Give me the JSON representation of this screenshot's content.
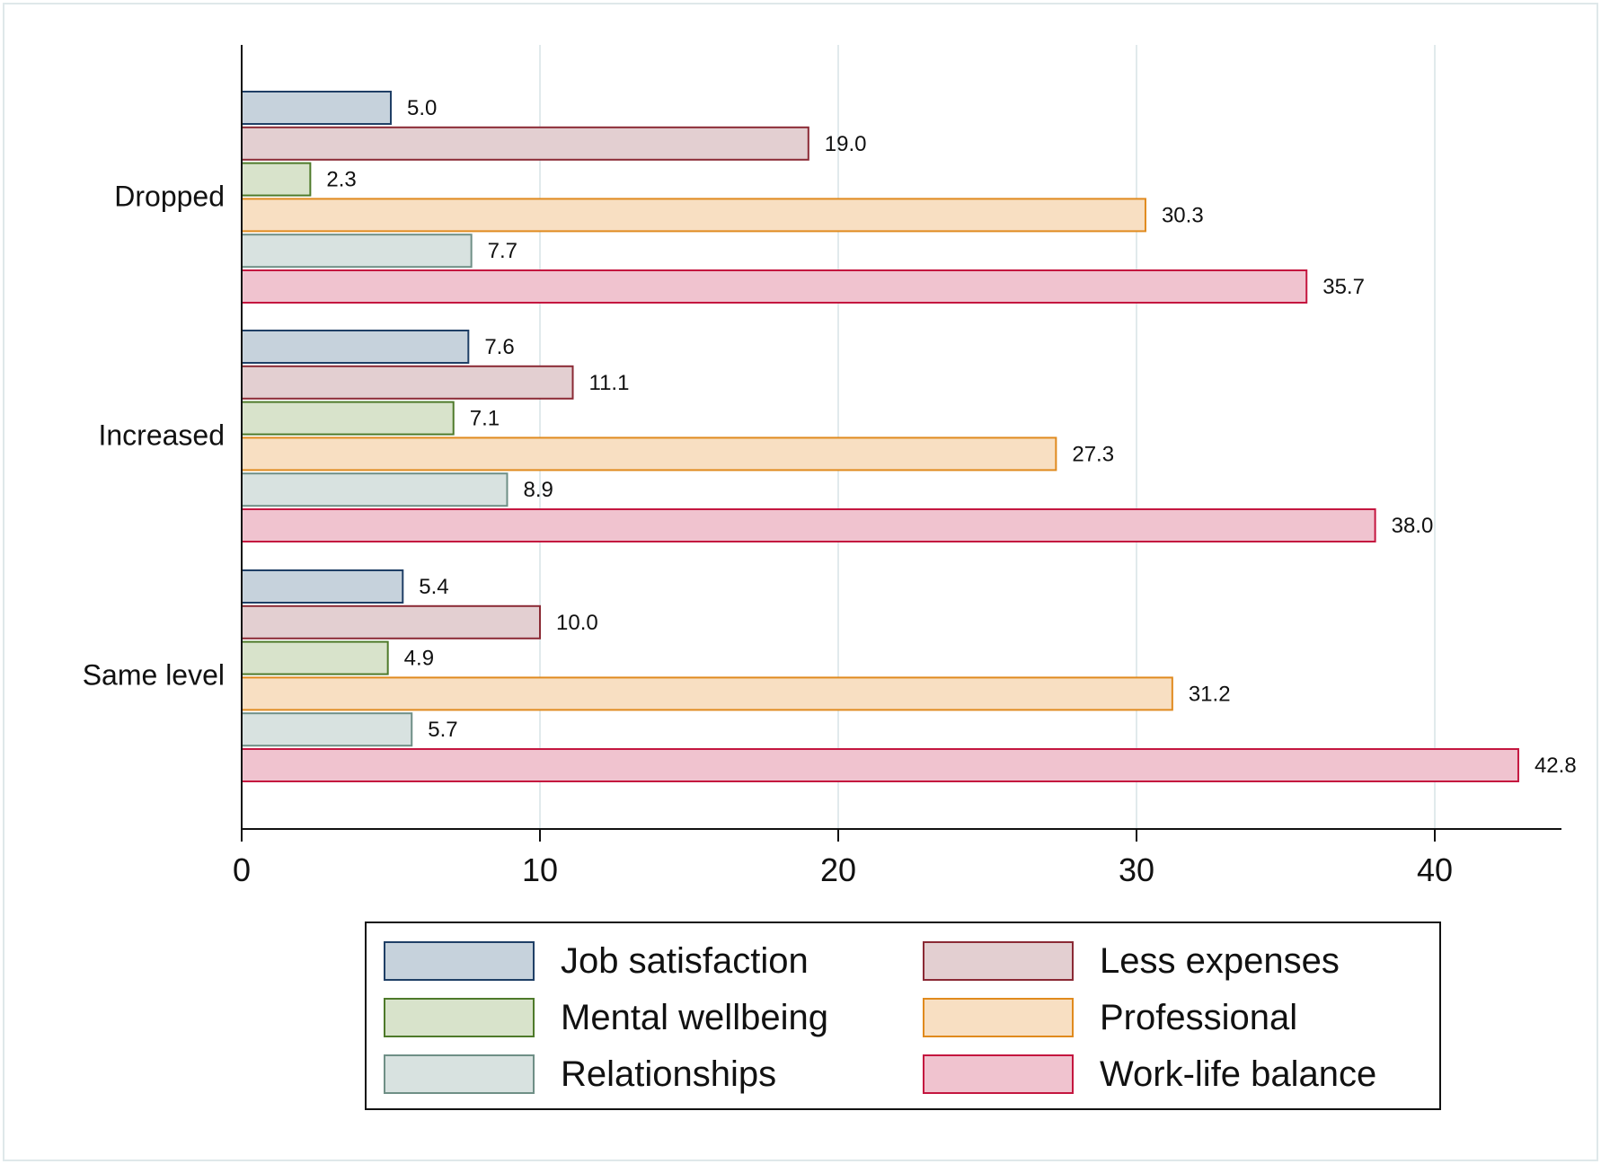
{
  "chart_data": {
    "type": "bar",
    "orientation": "horizontal",
    "title": "",
    "xlabel": "",
    "ylabel": "",
    "xlim": [
      0,
      44
    ],
    "x_ticks": [
      0,
      10,
      20,
      30,
      40
    ],
    "grid": true,
    "legend_position": "bottom",
    "categories": [
      "Dropped",
      "Increased",
      "Same level"
    ],
    "series": [
      {
        "name": "Job satisfaction",
        "values": [
          5.0,
          7.6,
          5.4
        ],
        "labels": [
          "5.0",
          "7.6",
          "5.4"
        ],
        "fill": "#c6d2dc",
        "stroke": "#1f3f66"
      },
      {
        "name": "Less expenses",
        "values": [
          19.0,
          11.1,
          10.0
        ],
        "labels": [
          "19.0",
          "11.1",
          "10.0"
        ],
        "fill": "#e3cfd1",
        "stroke": "#8b2a35"
      },
      {
        "name": "Mental wellbeing",
        "values": [
          2.3,
          7.1,
          4.9
        ],
        "labels": [
          "2.3",
          "7.1",
          "4.9"
        ],
        "fill": "#d8e3cb",
        "stroke": "#4e7a2a"
      },
      {
        "name": "Professional",
        "values": [
          30.3,
          27.3,
          31.2
        ],
        "labels": [
          "30.3",
          "27.3",
          "31.2"
        ],
        "fill": "#f8dfc2",
        "stroke": "#e08a1e"
      },
      {
        "name": "Relationships",
        "values": [
          7.7,
          8.9,
          5.7
        ],
        "labels": [
          "7.7",
          "8.9",
          "5.7"
        ],
        "fill": "#d8e2e0",
        "stroke": "#6f8f86"
      },
      {
        "name": "Work-life balance",
        "values": [
          35.7,
          38.0,
          42.8
        ],
        "labels": [
          "35.7",
          "38.0",
          "42.8"
        ],
        "fill": "#f0c3cf",
        "stroke": "#c4163f"
      }
    ],
    "colors": {
      "grid": "#e1eaec",
      "axis": "#111111",
      "frame": "#dfe8ea"
    }
  }
}
